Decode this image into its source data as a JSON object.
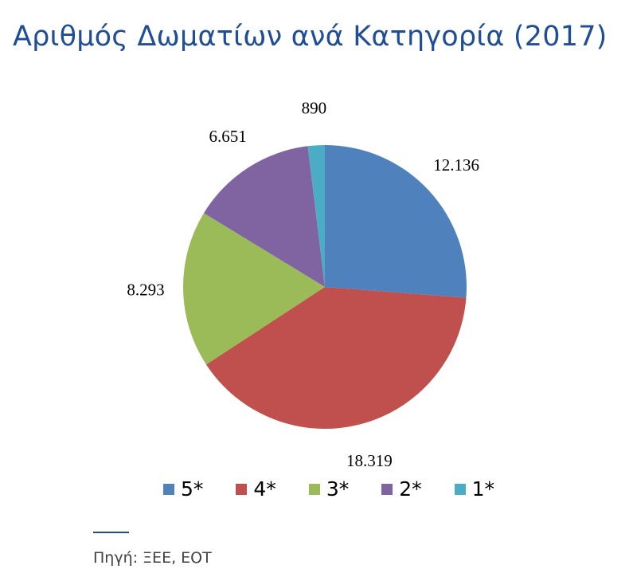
{
  "chart_data": {
    "type": "pie",
    "title": "Αριθμός Δωματίων ανά Κατηγορία (2017)",
    "categories": [
      "5*",
      "4*",
      "3*",
      "2*",
      "1*"
    ],
    "values": [
      12136,
      18319,
      8293,
      6651,
      890
    ],
    "value_labels": [
      "12.136",
      "18.319",
      "8.293",
      "6.651",
      "890"
    ],
    "colors": [
      "#4f81bd",
      "#c0504d",
      "#9bbb59",
      "#8064a2",
      "#4bacc6"
    ],
    "start": "12 o'clock",
    "direction": "clockwise",
    "legend_position": "bottom"
  },
  "source": {
    "text": "Πηγή: ΞΕΕ, ΕΟΤ"
  }
}
